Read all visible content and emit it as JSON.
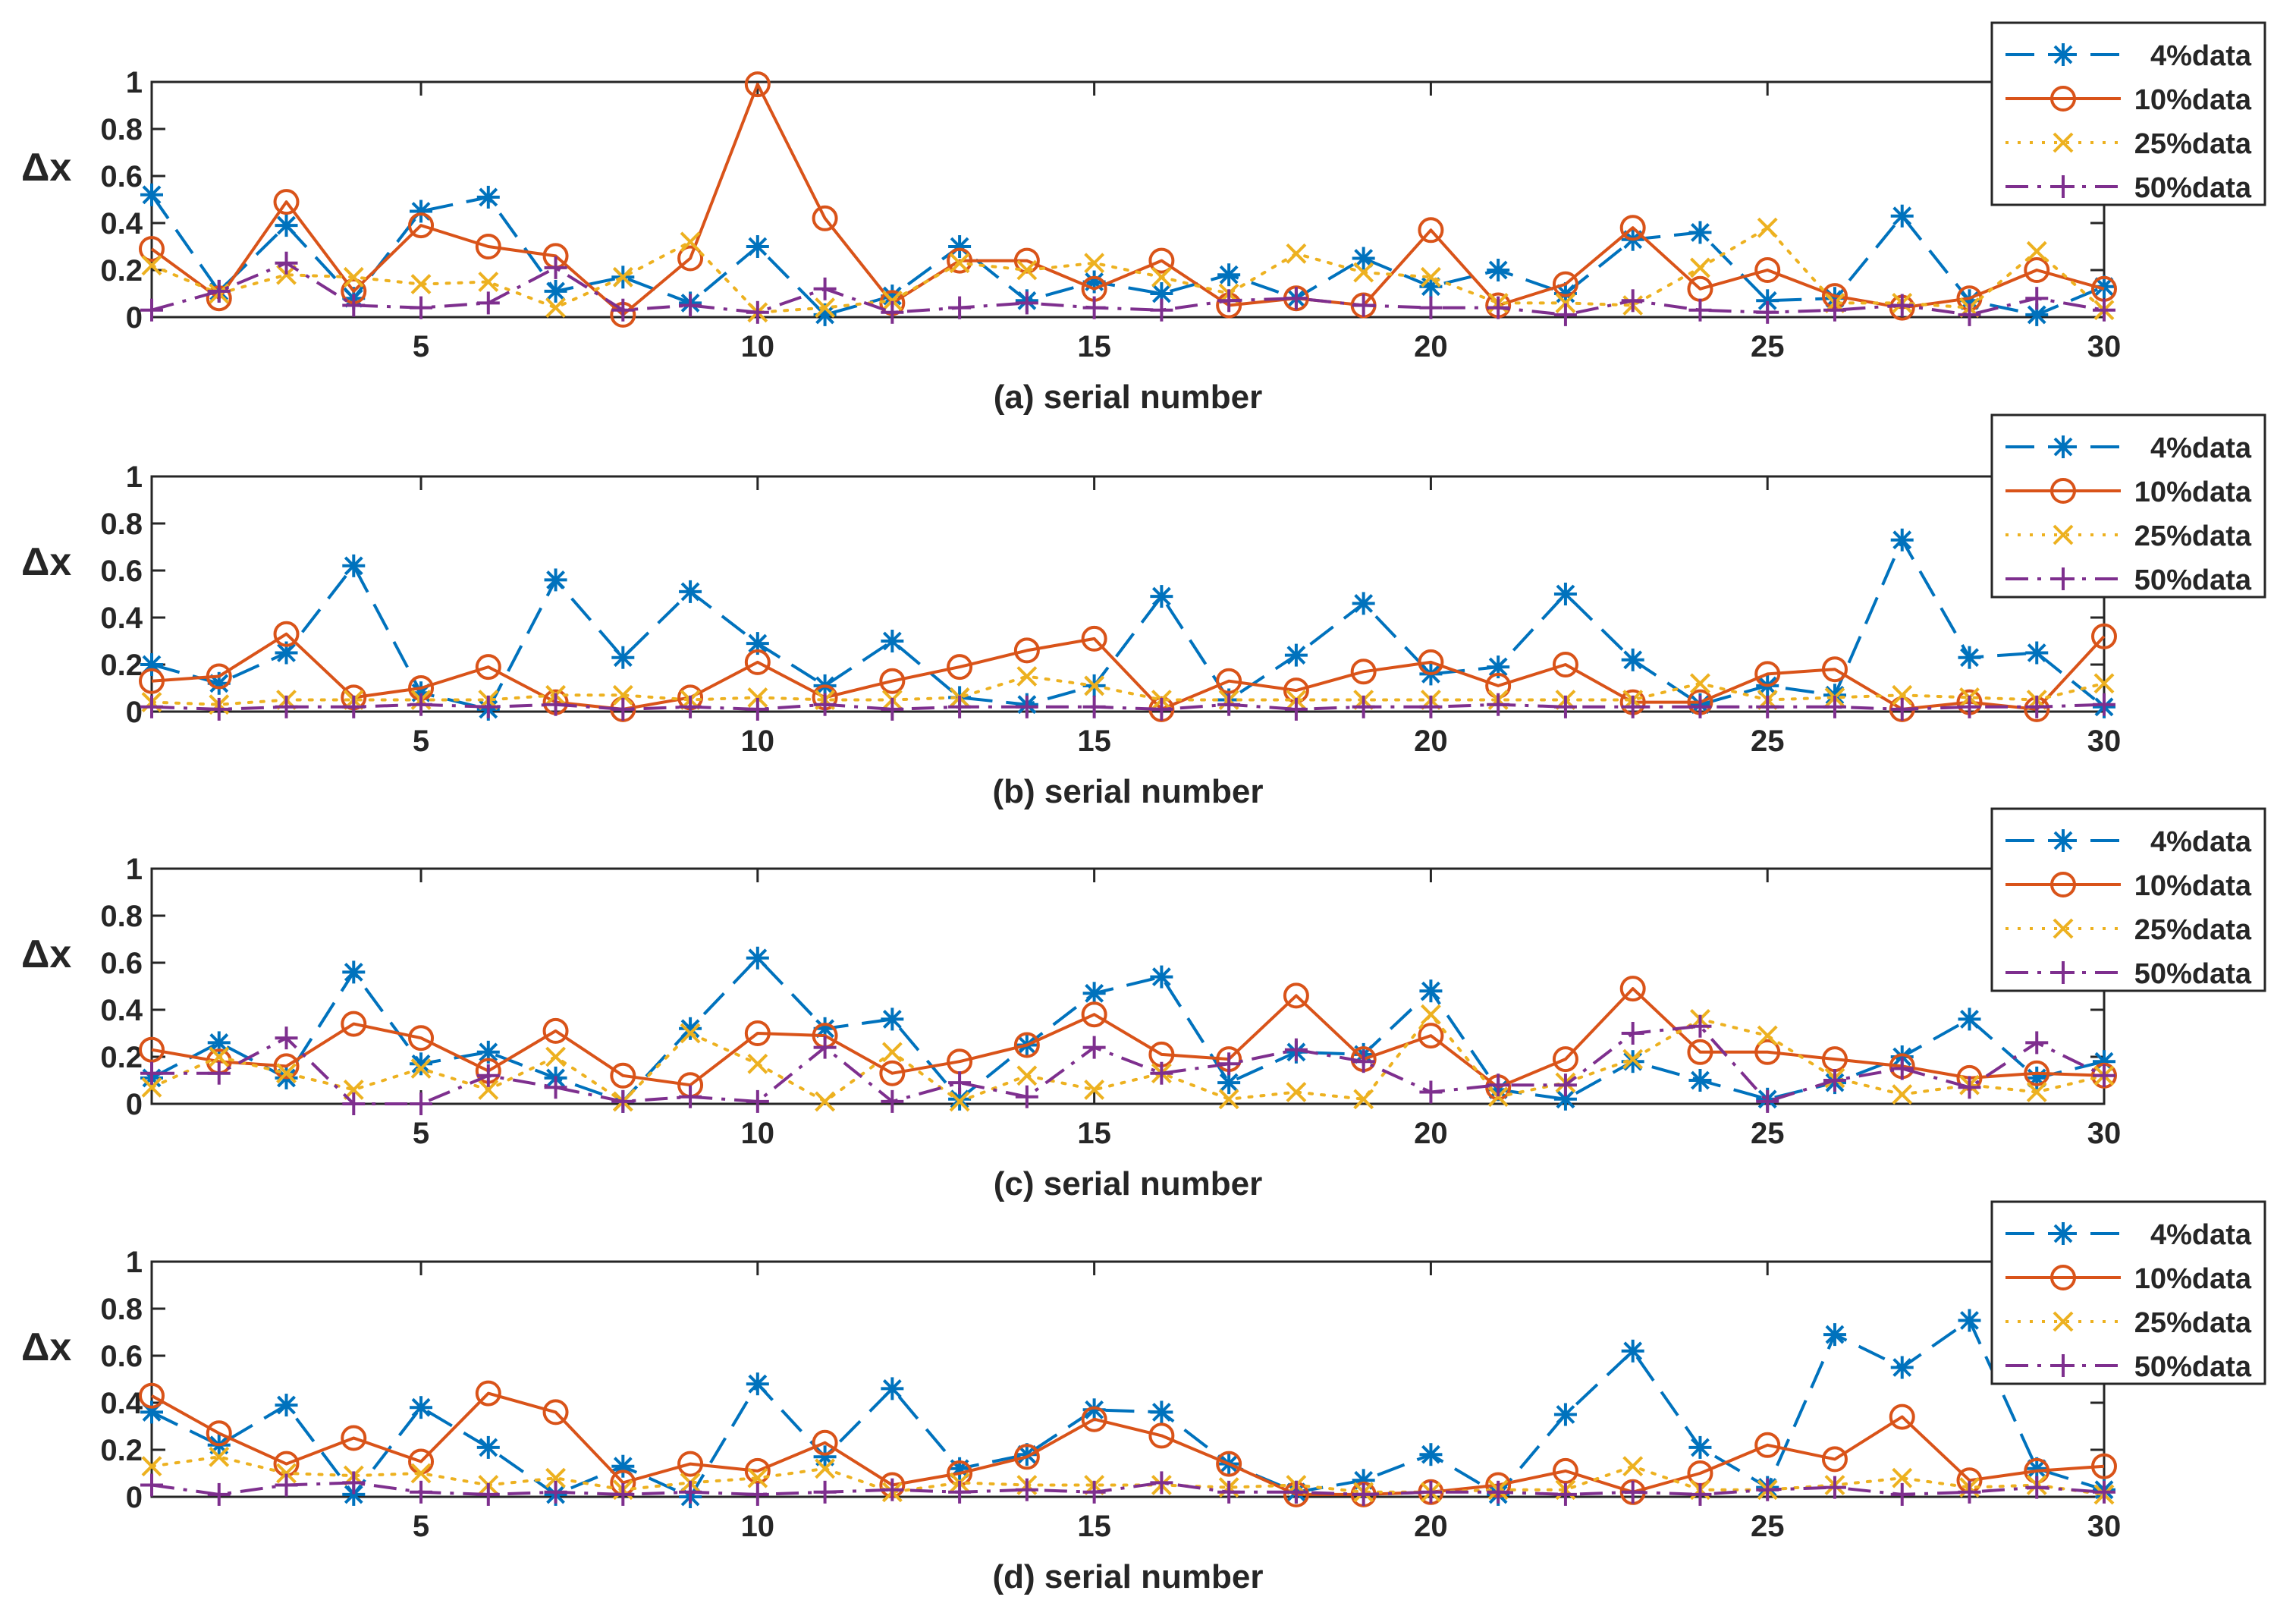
{
  "chart_data": [
    {
      "type": "line",
      "title": "",
      "xlabel": "(a) serial number",
      "ylabel": "Δx",
      "xlim": [
        1,
        30
      ],
      "ylim": [
        0,
        1
      ],
      "xticks": [
        "5",
        "10",
        "15",
        "20",
        "25",
        "30"
      ],
      "yticks": [
        "0",
        "0.2",
        "0.4",
        "0.6",
        "0.8",
        "1"
      ],
      "x": [
        1,
        2,
        3,
        4,
        5,
        6,
        7,
        8,
        9,
        10,
        11,
        12,
        13,
        14,
        15,
        16,
        17,
        18,
        19,
        20,
        21,
        22,
        23,
        24,
        25,
        26,
        27,
        28,
        29,
        30
      ],
      "series": [
        {
          "name": "4%data",
          "values": [
            0.52,
            0.11,
            0.39,
            0.08,
            0.45,
            0.51,
            0.11,
            0.17,
            0.06,
            0.3,
            0.01,
            0.09,
            0.3,
            0.07,
            0.15,
            0.1,
            0.18,
            0.08,
            0.25,
            0.13,
            0.2,
            0.1,
            0.33,
            0.36,
            0.07,
            0.08,
            0.43,
            0.07,
            0.01,
            0.13
          ]
        },
        {
          "name": "10%data",
          "values": [
            0.29,
            0.08,
            0.49,
            0.11,
            0.39,
            0.3,
            0.26,
            0.01,
            0.25,
            0.99,
            0.42,
            0.06,
            0.24,
            0.24,
            0.12,
            0.24,
            0.05,
            0.08,
            0.05,
            0.37,
            0.05,
            0.14,
            0.38,
            0.12,
            0.2,
            0.09,
            0.04,
            0.08,
            0.2,
            0.12
          ]
        },
        {
          "name": "25%data",
          "values": [
            0.22,
            0.1,
            0.18,
            0.17,
            0.14,
            0.15,
            0.04,
            0.17,
            0.32,
            0.02,
            0.04,
            0.07,
            0.23,
            0.2,
            0.23,
            0.17,
            0.1,
            0.27,
            0.19,
            0.17,
            0.06,
            0.06,
            0.05,
            0.21,
            0.38,
            0.06,
            0.06,
            0.04,
            0.28,
            0.03
          ]
        },
        {
          "name": "50%data",
          "values": [
            0.03,
            0.11,
            0.23,
            0.05,
            0.04,
            0.06,
            0.21,
            0.03,
            0.05,
            0.02,
            0.12,
            0.02,
            0.04,
            0.06,
            0.04,
            0.03,
            0.07,
            0.08,
            0.05,
            0.04,
            0.04,
            0.01,
            0.07,
            0.03,
            0.02,
            0.03,
            0.05,
            0.01,
            0.08,
            0.03
          ]
        }
      ],
      "legend": {
        "placement": "top-right"
      }
    },
    {
      "type": "line",
      "title": "",
      "xlabel": "(b) serial number",
      "ylabel": "Δx",
      "xlim": [
        1,
        30
      ],
      "ylim": [
        0,
        1
      ],
      "xticks": [
        "5",
        "10",
        "15",
        "20",
        "25",
        "30"
      ],
      "yticks": [
        "0",
        "0.2",
        "0.4",
        "0.6",
        "0.8",
        "1"
      ],
      "x": [
        1,
        2,
        3,
        4,
        5,
        6,
        7,
        8,
        9,
        10,
        11,
        12,
        13,
        14,
        15,
        16,
        17,
        18,
        19,
        20,
        21,
        22,
        23,
        24,
        25,
        26,
        27,
        28,
        29,
        30
      ],
      "series": [
        {
          "name": "4%data",
          "values": [
            0.2,
            0.12,
            0.25,
            0.62,
            0.08,
            0.01,
            0.56,
            0.23,
            0.51,
            0.29,
            0.11,
            0.3,
            0.06,
            0.03,
            0.11,
            0.49,
            0.05,
            0.24,
            0.46,
            0.16,
            0.19,
            0.5,
            0.22,
            0.03,
            0.11,
            0.07,
            0.73,
            0.23,
            0.25,
            0.02
          ]
        },
        {
          "name": "10%data",
          "values": [
            0.13,
            0.15,
            0.33,
            0.06,
            0.1,
            0.19,
            0.04,
            0.01,
            0.06,
            0.21,
            0.06,
            0.13,
            0.19,
            0.26,
            0.31,
            0.01,
            0.13,
            0.09,
            0.17,
            0.21,
            0.11,
            0.2,
            0.04,
            0.04,
            0.16,
            0.18,
            0.01,
            0.04,
            0.01,
            0.32
          ]
        },
        {
          "name": "25%data",
          "values": [
            0.04,
            0.03,
            0.05,
            0.05,
            0.05,
            0.05,
            0.07,
            0.07,
            0.05,
            0.06,
            0.05,
            0.05,
            0.06,
            0.15,
            0.11,
            0.05,
            0.05,
            0.05,
            0.05,
            0.05,
            0.05,
            0.05,
            0.05,
            0.12,
            0.05,
            0.06,
            0.07,
            0.06,
            0.05,
            0.12
          ]
        },
        {
          "name": "50%data",
          "values": [
            0.02,
            0.01,
            0.02,
            0.02,
            0.03,
            0.02,
            0.03,
            0.01,
            0.02,
            0.01,
            0.03,
            0.01,
            0.02,
            0.02,
            0.02,
            0.01,
            0.03,
            0.01,
            0.02,
            0.02,
            0.03,
            0.02,
            0.02,
            0.02,
            0.02,
            0.02,
            0.01,
            0.02,
            0.02,
            0.03
          ]
        }
      ],
      "legend": {
        "placement": "top-right"
      }
    },
    {
      "type": "line",
      "title": "",
      "xlabel": "(c) serial number",
      "ylabel": "Δx",
      "xlim": [
        1,
        30
      ],
      "ylim": [
        0,
        1
      ],
      "xticks": [
        "5",
        "10",
        "15",
        "20",
        "25",
        "30"
      ],
      "yticks": [
        "0",
        "0.2",
        "0.4",
        "0.6",
        "0.8",
        "1"
      ],
      "x": [
        1,
        2,
        3,
        4,
        5,
        6,
        7,
        8,
        9,
        10,
        11,
        12,
        13,
        14,
        15,
        16,
        17,
        18,
        19,
        20,
        21,
        22,
        23,
        24,
        25,
        26,
        27,
        28,
        29,
        30
      ],
      "series": [
        {
          "name": "4%data",
          "values": [
            0.11,
            0.26,
            0.11,
            0.56,
            0.17,
            0.22,
            0.11,
            0.01,
            0.32,
            0.62,
            0.32,
            0.36,
            0.02,
            0.25,
            0.47,
            0.54,
            0.09,
            0.22,
            0.21,
            0.48,
            0.06,
            0.02,
            0.18,
            0.1,
            0.02,
            0.09,
            0.2,
            0.36,
            0.11,
            0.18
          ]
        },
        {
          "name": "10%data",
          "values": [
            0.23,
            0.18,
            0.16,
            0.34,
            0.28,
            0.14,
            0.31,
            0.12,
            0.08,
            0.3,
            0.29,
            0.13,
            0.18,
            0.25,
            0.38,
            0.21,
            0.19,
            0.46,
            0.19,
            0.29,
            0.07,
            0.19,
            0.49,
            0.22,
            0.22,
            0.19,
            0.16,
            0.11,
            0.13,
            0.12
          ]
        },
        {
          "name": "25%data",
          "values": [
            0.07,
            0.2,
            0.13,
            0.06,
            0.15,
            0.06,
            0.2,
            0.01,
            0.3,
            0.17,
            0.01,
            0.22,
            0.01,
            0.12,
            0.06,
            0.13,
            0.02,
            0.05,
            0.02,
            0.38,
            0.03,
            0.09,
            0.19,
            0.36,
            0.29,
            0.11,
            0.04,
            0.08,
            0.05,
            0.12
          ]
        },
        {
          "name": "50%data",
          "values": [
            0.13,
            0.13,
            0.28,
            0.0,
            0.0,
            0.12,
            0.07,
            0.01,
            0.03,
            0.01,
            0.24,
            0.01,
            0.09,
            0.03,
            0.24,
            0.13,
            0.17,
            0.23,
            0.18,
            0.05,
            0.08,
            0.08,
            0.3,
            0.33,
            0.01,
            0.1,
            0.15,
            0.07,
            0.26,
            0.12
          ]
        }
      ],
      "legend": {
        "placement": "top-right"
      }
    },
    {
      "type": "line",
      "title": "",
      "xlabel": "(d) serial number",
      "ylabel": "Δx",
      "xlim": [
        1,
        30
      ],
      "ylim": [
        0,
        1
      ],
      "xticks": [
        "5",
        "10",
        "15",
        "20",
        "25",
        "30"
      ],
      "yticks": [
        "0",
        "0.2",
        "0.4",
        "0.6",
        "0.8",
        "1"
      ],
      "x": [
        1,
        2,
        3,
        4,
        5,
        6,
        7,
        8,
        9,
        10,
        11,
        12,
        13,
        14,
        15,
        16,
        17,
        18,
        19,
        20,
        21,
        22,
        23,
        24,
        25,
        26,
        27,
        28,
        29,
        30
      ],
      "series": [
        {
          "name": "4%data",
          "values": [
            0.36,
            0.22,
            0.39,
            0.01,
            0.38,
            0.21,
            0.01,
            0.13,
            0.0,
            0.48,
            0.17,
            0.46,
            0.12,
            0.18,
            0.37,
            0.36,
            0.14,
            0.02,
            0.07,
            0.18,
            0.01,
            0.35,
            0.62,
            0.21,
            0.04,
            0.69,
            0.55,
            0.75,
            0.12,
            0.03
          ]
        },
        {
          "name": "10%data",
          "values": [
            0.43,
            0.27,
            0.14,
            0.25,
            0.15,
            0.44,
            0.36,
            0.06,
            0.14,
            0.11,
            0.23,
            0.05,
            0.1,
            0.17,
            0.33,
            0.26,
            0.14,
            0.01,
            0.01,
            0.02,
            0.05,
            0.11,
            0.02,
            0.1,
            0.22,
            0.16,
            0.34,
            0.07,
            0.11,
            0.13
          ]
        },
        {
          "name": "25%data",
          "values": [
            0.13,
            0.17,
            0.1,
            0.09,
            0.1,
            0.05,
            0.08,
            0.03,
            0.06,
            0.08,
            0.12,
            0.02,
            0.06,
            0.05,
            0.05,
            0.05,
            0.04,
            0.05,
            0.02,
            0.02,
            0.03,
            0.03,
            0.13,
            0.03,
            0.03,
            0.05,
            0.08,
            0.04,
            0.05,
            0.01
          ]
        },
        {
          "name": "50%data",
          "values": [
            0.05,
            0.01,
            0.05,
            0.06,
            0.02,
            0.01,
            0.02,
            0.01,
            0.02,
            0.01,
            0.02,
            0.03,
            0.02,
            0.03,
            0.02,
            0.06,
            0.02,
            0.02,
            0.01,
            0.02,
            0.02,
            0.01,
            0.02,
            0.01,
            0.03,
            0.04,
            0.01,
            0.02,
            0.04,
            0.02
          ]
        }
      ],
      "legend": {
        "placement": "top-right"
      }
    }
  ],
  "style": {
    "series_colors": [
      "#0072BD",
      "#D95319",
      "#EDB120",
      "#7E2F8E"
    ],
    "axis_color": "#262626"
  }
}
